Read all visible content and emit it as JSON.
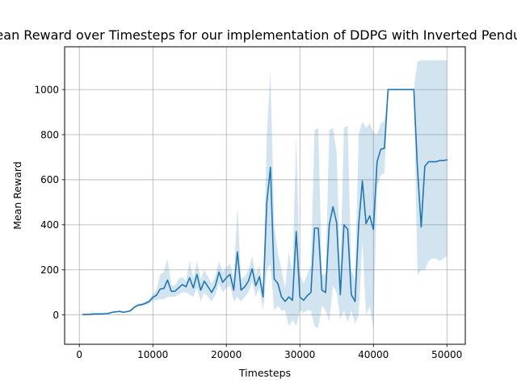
{
  "chart_data": {
    "type": "line",
    "title": "Mean Reward over Timesteps for our implementation of DDPG with Inverted Pendulum",
    "xlabel": "Timesteps",
    "ylabel": "Mean Reward",
    "xlim": [
      -2000,
      52500
    ],
    "ylim": [
      -130,
      1190
    ],
    "xticks": [
      0,
      10000,
      20000,
      30000,
      40000,
      50000
    ],
    "yticks": [
      0,
      200,
      400,
      600,
      800,
      1000
    ],
    "grid": true,
    "legend": "none",
    "series": [
      {
        "color": "#1f77b4",
        "band_color": "#1f77b4",
        "band_opacity": 0.2,
        "x": [
          500,
          1000,
          1500,
          2000,
          2500,
          3000,
          3500,
          4000,
          4500,
          5000,
          5500,
          6000,
          6500,
          7000,
          7500,
          8000,
          8500,
          9000,
          9500,
          10000,
          10500,
          11000,
          11500,
          12000,
          12500,
          13000,
          13500,
          14000,
          14500,
          15000,
          15500,
          16000,
          16500,
          17000,
          17500,
          18000,
          18500,
          19000,
          19500,
          20000,
          20500,
          21000,
          21500,
          22000,
          22500,
          23000,
          23500,
          24000,
          24500,
          25000,
          25500,
          26000,
          26500,
          27000,
          27500,
          28000,
          28500,
          29000,
          29500,
          30000,
          30500,
          31000,
          31500,
          32000,
          32500,
          33000,
          33500,
          34000,
          34500,
          35000,
          35500,
          36000,
          36500,
          37000,
          37500,
          38000,
          38500,
          39000,
          39500,
          40000,
          40500,
          41000,
          41500,
          42000,
          42500,
          43000,
          43500,
          44000,
          44500,
          45000,
          45500,
          46000,
          46500,
          47000,
          47500,
          48000,
          48500,
          49000,
          49500,
          50000
        ],
        "y": [
          2,
          2,
          3,
          5,
          5,
          5,
          6,
          7,
          12,
          14,
          16,
          12,
          15,
          20,
          35,
          44,
          46,
          52,
          60,
          78,
          88,
          115,
          118,
          155,
          105,
          105,
          120,
          135,
          125,
          165,
          120,
          180,
          110,
          150,
          125,
          100,
          130,
          190,
          145,
          165,
          180,
          110,
          280,
          110,
          125,
          150,
          205,
          130,
          170,
          80,
          500,
          655,
          160,
          140,
          80,
          60,
          80,
          65,
          370,
          80,
          65,
          85,
          100,
          385,
          385,
          110,
          100,
          400,
          480,
          410,
          90,
          400,
          380,
          90,
          60,
          400,
          595,
          405,
          440,
          380,
          680,
          735,
          740,
          1000,
          1000,
          1000,
          1000,
          1000,
          1000,
          1000,
          1000,
          650,
          390,
          660,
          680,
          680,
          680,
          685,
          685,
          688
        ],
        "upper": [
          3,
          3,
          4,
          6,
          6,
          6,
          8,
          9,
          14,
          16,
          18,
          14,
          17,
          25,
          40,
          50,
          52,
          60,
          70,
          90,
          110,
          180,
          190,
          250,
          130,
          130,
          160,
          170,
          150,
          240,
          160,
          240,
          160,
          200,
          170,
          140,
          170,
          240,
          190,
          210,
          230,
          160,
          480,
          160,
          170,
          200,
          260,
          180,
          220,
          120,
          800,
          1085,
          400,
          280,
          200,
          120,
          280,
          180,
          790,
          180,
          140,
          180,
          220,
          820,
          830,
          180,
          180,
          820,
          830,
          720,
          200,
          830,
          840,
          200,
          160,
          800,
          860,
          830,
          850,
          810,
          800,
          850,
          860,
          1000,
          1000,
          1000,
          1000,
          1000,
          1000,
          1000,
          1000,
          1125,
          1130,
          1130,
          1130,
          1130,
          1130,
          1130,
          1130,
          1130
        ],
        "lower": [
          1,
          1,
          2,
          4,
          4,
          4,
          4,
          5,
          10,
          12,
          14,
          10,
          13,
          15,
          30,
          38,
          40,
          44,
          50,
          66,
          66,
          70,
          70,
          80,
          80,
          80,
          90,
          100,
          100,
          90,
          80,
          120,
          60,
          100,
          80,
          60,
          90,
          140,
          100,
          120,
          130,
          60,
          80,
          60,
          80,
          100,
          150,
          80,
          120,
          20,
          200,
          225,
          20,
          40,
          20,
          20,
          -50,
          -20,
          -50,
          20,
          10,
          20,
          20,
          -50,
          -60,
          40,
          20,
          -30,
          130,
          100,
          -20,
          20,
          -30,
          20,
          -40,
          0,
          330,
          0,
          40,
          -60,
          560,
          620,
          630,
          1000,
          1000,
          1000,
          1000,
          1000,
          1000,
          1000,
          1000,
          175,
          200,
          200,
          240,
          250,
          250,
          240,
          250,
          260
        ]
      }
    ]
  }
}
